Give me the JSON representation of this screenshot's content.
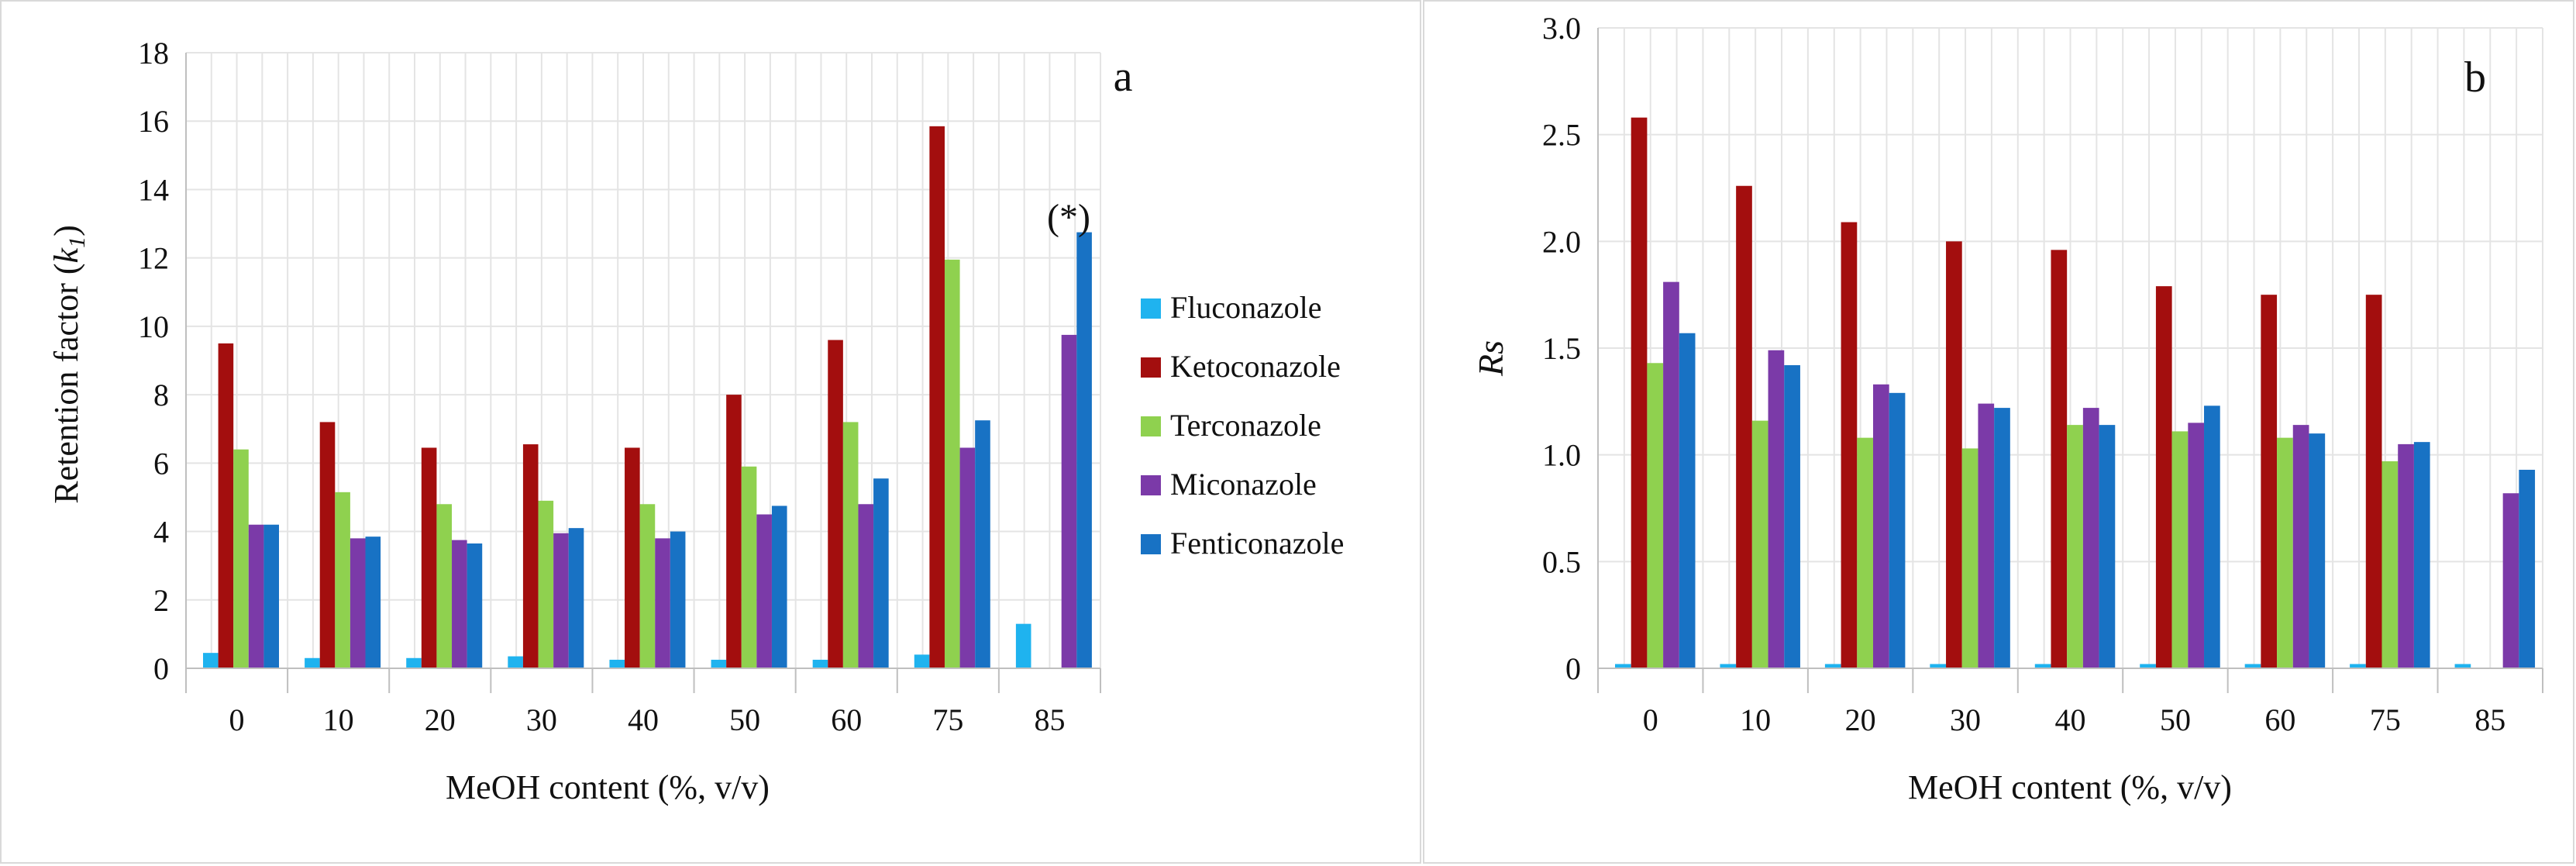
{
  "chart_data": [
    {
      "type": "bar",
      "panel_label": "a",
      "title": "",
      "xlabel": "MeOH content (%, v/v)",
      "ylabel_main": "Retention factor (",
      "ylabel_var": "k",
      "ylabel_sub": "1",
      "ylabel_end": ")",
      "ylim": [
        0,
        18
      ],
      "yticks": [
        "0",
        "2",
        "4",
        "6",
        "8",
        "10",
        "12",
        "14",
        "16",
        "18"
      ],
      "categories": [
        "0",
        "10",
        "20",
        "30",
        "40",
        "50",
        "60",
        "75",
        "85"
      ],
      "annotation": "(*)",
      "legend_position": "right",
      "series": [
        {
          "name": "Fluconazole",
          "color": "#1fb3ef",
          "values": [
            0.45,
            0.3,
            0.3,
            0.35,
            0.25,
            0.25,
            0.25,
            0.4,
            1.3
          ]
        },
        {
          "name": "Ketoconazole",
          "color": "#a30e0e",
          "values": [
            9.5,
            7.2,
            6.45,
            6.55,
            6.45,
            8.0,
            9.6,
            15.85,
            null
          ]
        },
        {
          "name": "Terconazole",
          "color": "#8fd14f",
          "values": [
            6.4,
            5.15,
            4.8,
            4.9,
            4.8,
            5.9,
            7.2,
            11.95,
            null
          ]
        },
        {
          "name": "Miconazole",
          "color": "#7b3aa8",
          "values": [
            4.2,
            3.8,
            3.75,
            3.95,
            3.8,
            4.5,
            4.8,
            6.45,
            9.75
          ]
        },
        {
          "name": "Fenticonazole",
          "color": "#1872c4",
          "values": [
            4.2,
            3.85,
            3.65,
            4.1,
            4.0,
            4.75,
            5.55,
            7.25,
            12.75
          ]
        }
      ]
    },
    {
      "type": "bar",
      "panel_label": "b",
      "title": "",
      "xlabel": "MeOH content (%, v/v)",
      "ylabel": "Rs",
      "ylim": [
        0,
        3.0
      ],
      "yticks": [
        "0",
        "0.5",
        "1.0",
        "1.5",
        "2.0",
        "2.5",
        "3.0"
      ],
      "categories": [
        "0",
        "10",
        "20",
        "30",
        "40",
        "50",
        "60",
        "75",
        "85"
      ],
      "series": [
        {
          "name": "Fluconazole",
          "color": "#1fb3ef",
          "values": [
            0.02,
            0.02,
            0.02,
            0.02,
            0.02,
            0.02,
            0.02,
            0.02,
            0.02
          ]
        },
        {
          "name": "Ketoconazole",
          "color": "#a30e0e",
          "values": [
            2.58,
            2.26,
            2.09,
            2.0,
            1.96,
            1.79,
            1.75,
            1.75,
            null
          ]
        },
        {
          "name": "Terconazole",
          "color": "#8fd14f",
          "values": [
            1.43,
            1.16,
            1.08,
            1.03,
            1.14,
            1.11,
            1.08,
            0.97,
            null
          ]
        },
        {
          "name": "Miconazole",
          "color": "#7b3aa8",
          "values": [
            1.81,
            1.49,
            1.33,
            1.24,
            1.22,
            1.15,
            1.14,
            1.05,
            0.82
          ]
        },
        {
          "name": "Fenticonazole",
          "color": "#1872c4",
          "values": [
            1.57,
            1.42,
            1.29,
            1.22,
            1.14,
            1.23,
            1.1,
            1.06,
            0.93
          ]
        }
      ]
    }
  ]
}
